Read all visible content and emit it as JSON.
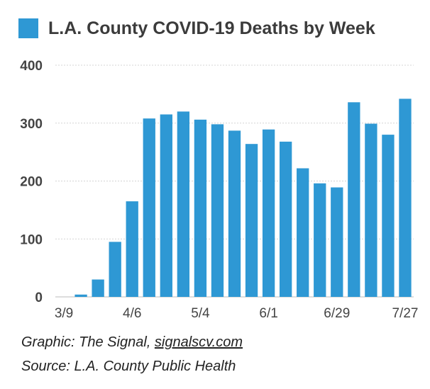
{
  "chart_data": {
    "type": "bar",
    "title": "",
    "xlabel": "",
    "ylabel": "",
    "series": [
      {
        "name": "L.A. County COVID-19 Deaths by Week",
        "color": "#2e98d4",
        "values": [
          0,
          4,
          30,
          95,
          165,
          308,
          315,
          320,
          306,
          298,
          287,
          264,
          289,
          268,
          222,
          196,
          189,
          336,
          299,
          280,
          342
        ]
      }
    ],
    "x_tick_labels": [
      "3/9",
      "4/6",
      "5/4",
      "6/1",
      "6/29",
      "7/27"
    ],
    "x_tick_indices": [
      0,
      4,
      8,
      12,
      16,
      20
    ],
    "y_ticks": [
      0,
      100,
      200,
      300,
      400
    ],
    "ylim": [
      0,
      400
    ],
    "grid": true,
    "legend_position": "top-left"
  },
  "credits": {
    "graphic_prefix": "Graphic: The Signal, ",
    "graphic_link": "signalscv.com",
    "source": "Source: L.A. County Public Health"
  }
}
